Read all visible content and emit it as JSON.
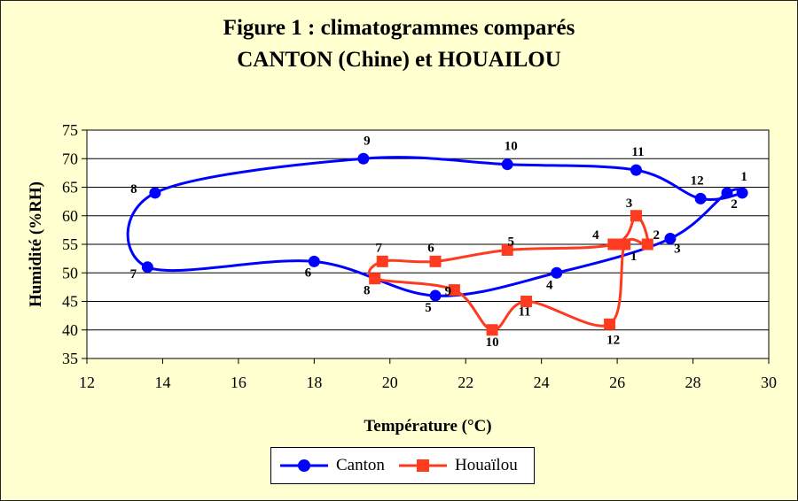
{
  "title": {
    "line1": "Figure 1 : climatogrammes comparés",
    "line2": "CANTON (Chine) et HOUAILOU"
  },
  "chart_data": {
    "type": "line",
    "xlabel": "Température (°C)",
    "ylabel": "Humidité (%RH)",
    "xlim": [
      12,
      30
    ],
    "ylim": [
      35,
      75
    ],
    "xticks": [
      12,
      14,
      16,
      18,
      20,
      22,
      24,
      26,
      28,
      30
    ],
    "yticks": [
      35,
      40,
      45,
      50,
      55,
      60,
      65,
      70,
      75
    ],
    "grid": "horizontal",
    "legend": "bottom",
    "series": [
      {
        "name": "Canton",
        "color": "#0000ff",
        "marker": "circle",
        "points": [
          {
            "label": "1",
            "x": 29.3,
            "y": 64
          },
          {
            "label": "2",
            "x": 28.9,
            "y": 64
          },
          {
            "label": "3",
            "x": 27.4,
            "y": 56
          },
          {
            "label": "4",
            "x": 24.4,
            "y": 50
          },
          {
            "label": "5",
            "x": 21.2,
            "y": 46
          },
          {
            "label": "6",
            "x": 18.0,
            "y": 52
          },
          {
            "label": "7",
            "x": 13.6,
            "y": 51
          },
          {
            "label": "8",
            "x": 13.8,
            "y": 64
          },
          {
            "label": "9",
            "x": 19.3,
            "y": 70
          },
          {
            "label": "10",
            "x": 23.1,
            "y": 69
          },
          {
            "label": "11",
            "x": 26.5,
            "y": 68
          },
          {
            "label": "12",
            "x": 28.2,
            "y": 63
          }
        ]
      },
      {
        "name": "Houaïlou",
        "color": "#ff3b1f",
        "marker": "square",
        "points": [
          {
            "label": "1",
            "x": 26.2,
            "y": 55
          },
          {
            "label": "2",
            "x": 26.8,
            "y": 55
          },
          {
            "label": "3",
            "x": 26.5,
            "y": 60
          },
          {
            "label": "4",
            "x": 25.9,
            "y": 55
          },
          {
            "label": "5",
            "x": 23.1,
            "y": 54
          },
          {
            "label": "6",
            "x": 21.2,
            "y": 52
          },
          {
            "label": "7",
            "x": 19.8,
            "y": 52
          },
          {
            "label": "8",
            "x": 19.6,
            "y": 49
          },
          {
            "label": "9",
            "x": 21.7,
            "y": 47
          },
          {
            "label": "10",
            "x": 22.7,
            "y": 40
          },
          {
            "label": "11",
            "x": 23.6,
            "y": 45
          },
          {
            "label": "12",
            "x": 25.8,
            "y": 41
          }
        ]
      }
    ]
  }
}
